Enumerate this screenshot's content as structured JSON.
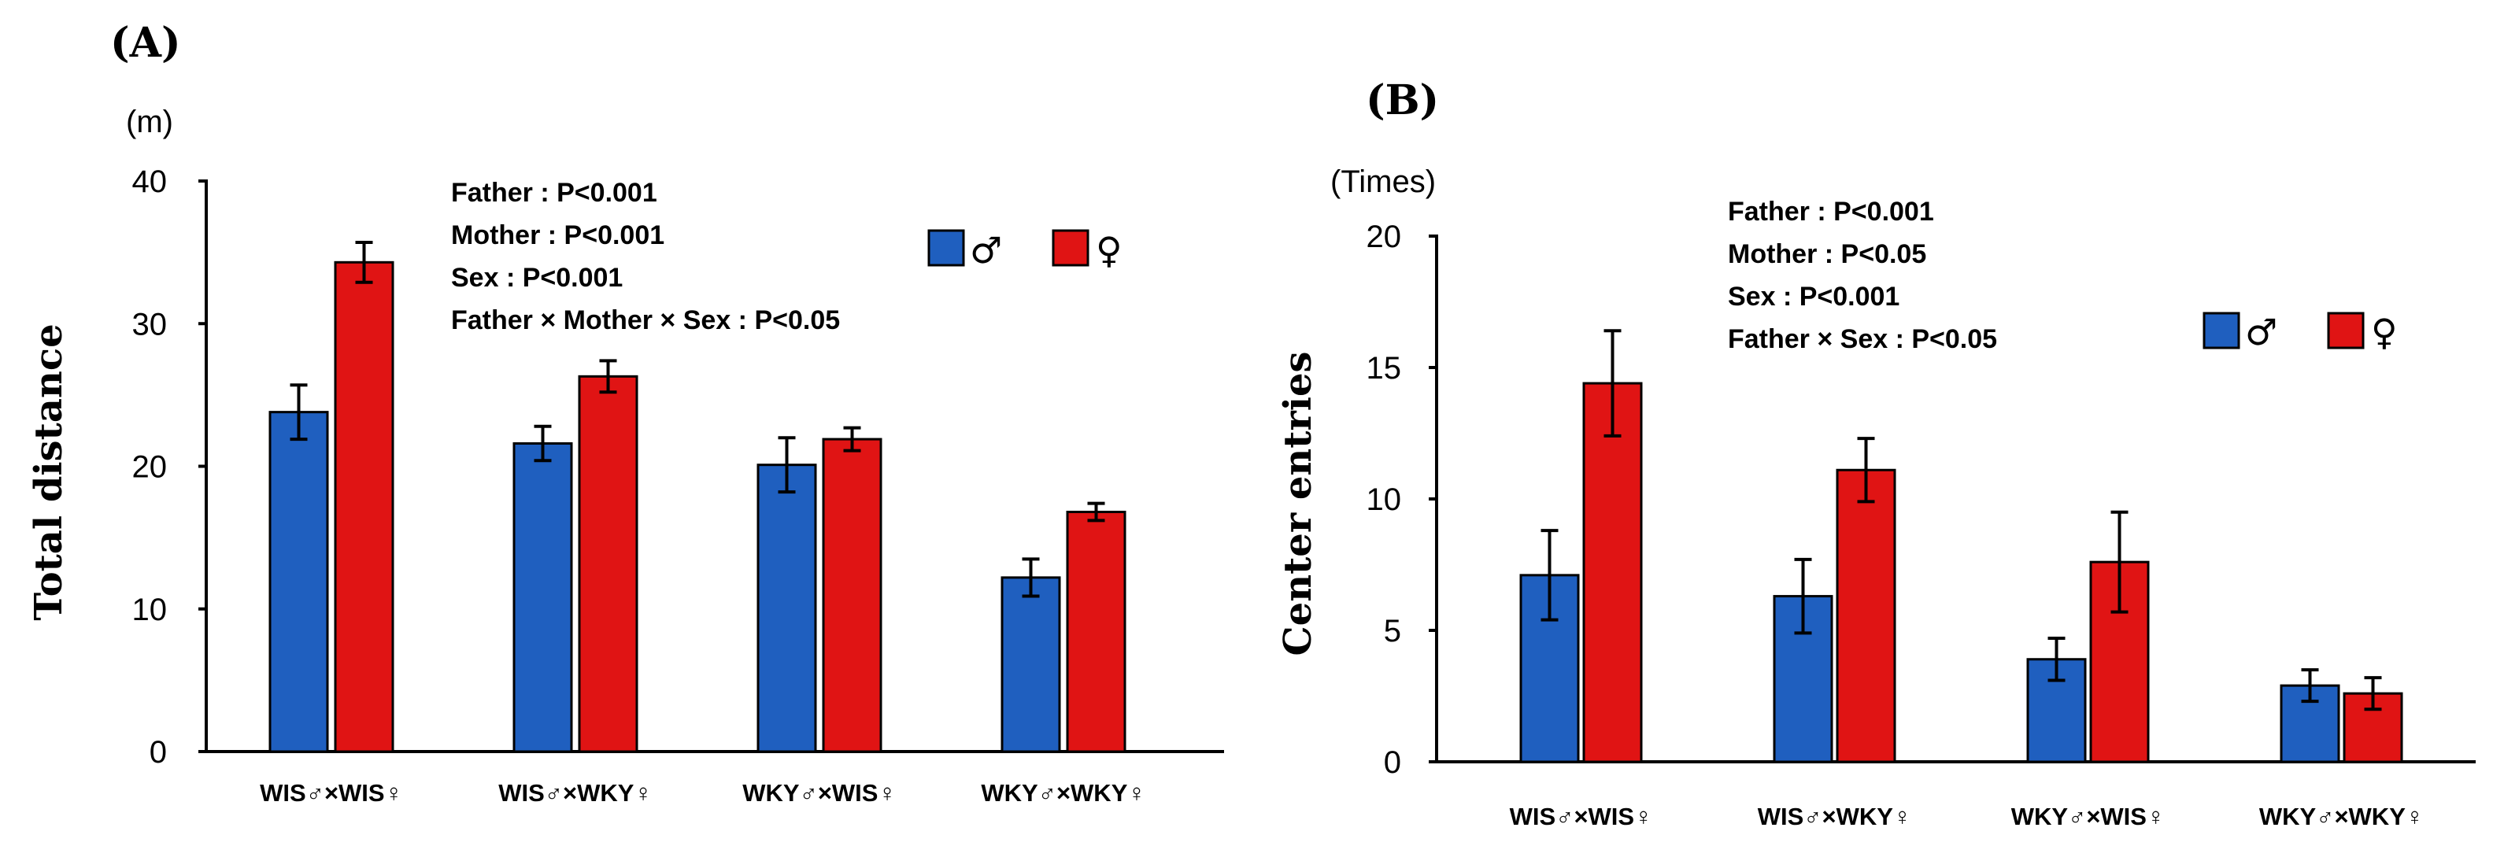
{
  "colors": {
    "male": "#1f5fbf",
    "female": "#e01414",
    "axis": "#000000"
  },
  "chart_data": [
    {
      "panel": "(A)",
      "type": "bar",
      "unit_label": "(m)",
      "ylabel": "Total distance",
      "ylim": [
        0,
        40
      ],
      "yticks": [
        "0",
        "10",
        "20",
        "30",
        "40"
      ],
      "categories": [
        "WIS♂×WIS♀",
        "WIS♂×WKY♀",
        "WKY♂×WIS♀",
        "WKY♂×WKY♀"
      ],
      "series": [
        {
          "name": "♂",
          "values": [
            23.8,
            21.6,
            20.1,
            12.2
          ],
          "errors": [
            1.9,
            1.2,
            1.9,
            1.3
          ]
        },
        {
          "name": "♀",
          "values": [
            34.3,
            26.3,
            21.9,
            16.8
          ],
          "errors": [
            1.4,
            1.1,
            0.8,
            0.6
          ]
        }
      ],
      "stats": [
        "Father : P<0.001",
        "Mother : P<0.001",
        "Sex : P<0.001",
        "Father × Mother × Sex : P<0.05"
      ]
    },
    {
      "panel": "(B)",
      "type": "bar",
      "unit_label": "(Times)",
      "ylabel": "Center entries",
      "ylim": [
        0,
        20
      ],
      "yticks": [
        "0",
        "5",
        "10",
        "15",
        "20"
      ],
      "categories": [
        "WIS♂×WIS♀",
        "WIS♂×WKY♀",
        "WKY♂×WIS♀",
        "WKY♂×WKY♀"
      ],
      "series": [
        {
          "name": "♂",
          "values": [
            7.1,
            6.3,
            3.9,
            2.9
          ],
          "errors": [
            1.7,
            1.4,
            0.8,
            0.6
          ]
        },
        {
          "name": "♀",
          "values": [
            14.4,
            11.1,
            7.6,
            2.6
          ],
          "errors": [
            2.0,
            1.2,
            1.9,
            0.6
          ]
        }
      ],
      "stats": [
        "Father : P<0.001",
        "Mother : P<0.05",
        "Sex : P<0.001",
        "Father × Sex : P<0.05"
      ]
    }
  ]
}
